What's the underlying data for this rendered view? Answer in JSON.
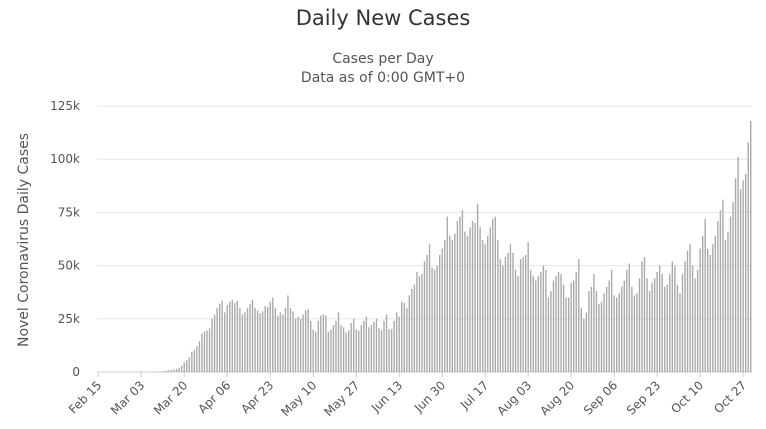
{
  "chart_data": {
    "type": "bar",
    "title": "Daily New Cases",
    "subtitle": "Cases per Day",
    "subtitle2": "Data as of 0:00 GMT+0",
    "ylabel": "Novel Coronavirus Daily Cases",
    "xlabel": "",
    "ylim": [
      0,
      125000
    ],
    "yticks": [
      0,
      25000,
      50000,
      75000,
      100000,
      125000
    ],
    "ytick_labels": [
      "0",
      "25k",
      "50k",
      "75k",
      "100k",
      "125k"
    ],
    "x_tick_labels": [
      "Feb 15",
      "Mar 03",
      "Mar 20",
      "Apr 06",
      "Apr 23",
      "May 10",
      "May 27",
      "Jun 13",
      "Jun 30",
      "Jul 17",
      "Aug 03",
      "Aug 20",
      "Sep 06",
      "Sep 23",
      "Oct 10",
      "Oct 27"
    ],
    "start_date": "2020-02-15",
    "tick_interval_days": 17,
    "grid": true,
    "bar_color": "#aaaaaa",
    "values": [
      0,
      0,
      0,
      0,
      0,
      0,
      0,
      0,
      0,
      0,
      0,
      0,
      0,
      0,
      0,
      0,
      0,
      0,
      0,
      0,
      0,
      0,
      0,
      100,
      200,
      300,
      400,
      600,
      800,
      1000,
      1200,
      1500,
      2000,
      3000,
      4500,
      5500,
      7000,
      9500,
      10500,
      12000,
      14500,
      18000,
      19000,
      19500,
      20500,
      25000,
      27000,
      30000,
      32000,
      33500,
      28000,
      31500,
      33000,
      34000,
      32500,
      33500,
      30000,
      27000,
      28000,
      30000,
      32000,
      34000,
      30000,
      29000,
      27500,
      28500,
      31000,
      30500,
      33000,
      35000,
      30000,
      26500,
      28000,
      27000,
      30000,
      36000,
      30000,
      28500,
      25000,
      26000,
      25000,
      27000,
      29000,
      29500,
      24000,
      20000,
      19000,
      24000,
      26500,
      27000,
      26500,
      19000,
      20000,
      22000,
      24000,
      28000,
      22000,
      21000,
      18500,
      19500,
      23000,
      25000,
      20000,
      19500,
      22000,
      24000,
      26000,
      21000,
      22000,
      23500,
      25000,
      20500,
      19500,
      24000,
      27000,
      20000,
      20000,
      24000,
      28000,
      26000,
      33000,
      32500,
      30000,
      36000,
      39000,
      41000,
      47000,
      45000,
      46000,
      52000,
      55000,
      60000,
      49000,
      48000,
      50000,
      55000,
      58000,
      62000,
      73000,
      64000,
      62000,
      65000,
      71000,
      73000,
      76000,
      66000,
      64000,
      68000,
      71000,
      70000,
      79000,
      68000,
      62000,
      60000,
      64000,
      68000,
      72000,
      73000,
      62000,
      53000,
      50000,
      54000,
      56000,
      60000,
      56000,
      48000,
      45000,
      53000,
      54000,
      55000,
      61000,
      48000,
      45000,
      43000,
      45000,
      47000,
      50000,
      48000,
      35000,
      38000,
      43000,
      45000,
      47000,
      46000,
      41000,
      35000,
      35000,
      42000,
      43000,
      47000,
      53000,
      30000,
      25000,
      28000,
      38000,
      40000,
      46000,
      38000,
      32000,
      33000,
      37000,
      40000,
      43000,
      48000,
      36000,
      35000,
      37000,
      40000,
      43000,
      48000,
      51000,
      40000,
      36000,
      37000,
      44000,
      52000,
      54000,
      44000,
      38000,
      42000,
      44000,
      47000,
      50000,
      46000,
      40000,
      41000,
      46000,
      52000,
      50000,
      41000,
      37000,
      46000,
      52000,
      57000,
      60000,
      50000,
      44000,
      48000,
      58000,
      64000,
      72000,
      58000,
      55000,
      60000,
      64000,
      71000,
      76000,
      81000,
      62000,
      66000,
      73000,
      80000,
      91000,
      101000,
      86000,
      90000,
      93000,
      108000,
      118000
    ]
  }
}
